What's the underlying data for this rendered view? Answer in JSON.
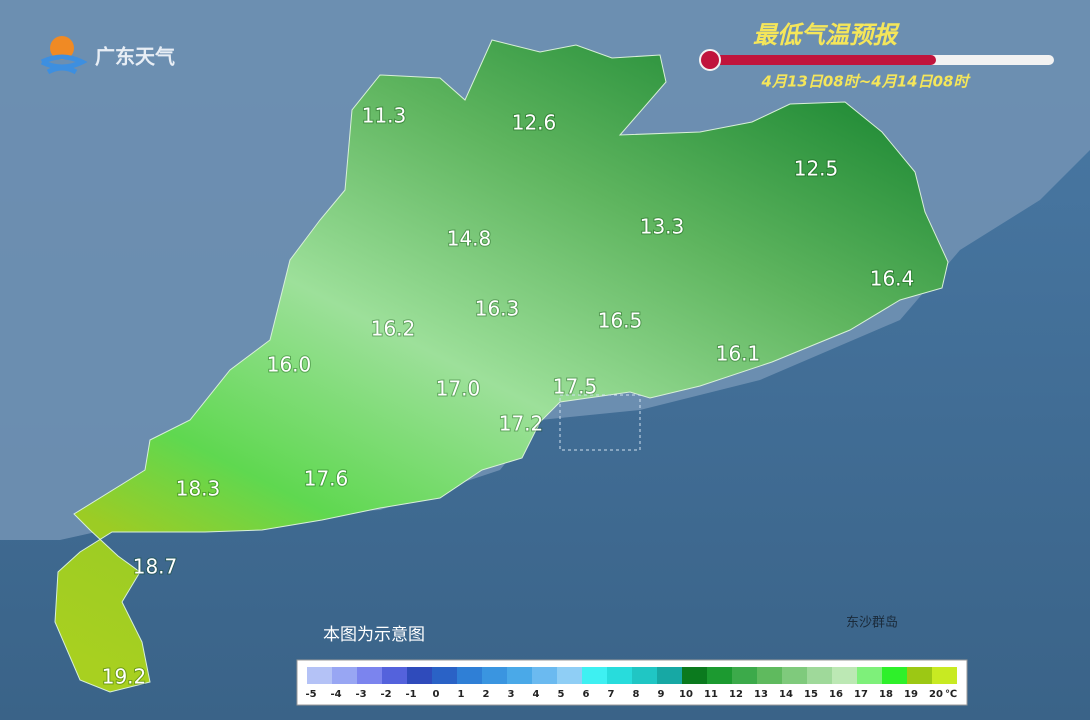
{
  "header": {
    "logo": "广东天气",
    "title": "最低气温预报",
    "subtitle": "4月13日08时~4月14日08时"
  },
  "labels": [
    "11.3",
    "12.6",
    "12.5",
    "14.8",
    "13.3",
    "16.4",
    "16.3",
    "16.5",
    "16.2",
    "16.0",
    "16.1",
    "17.0",
    "17.5",
    "17.2",
    "18.3",
    "17.6",
    "18.7",
    "19.2"
  ],
  "note": "本图为示意图",
  "island": "东沙群岛",
  "legend": {
    "unit": "℃",
    "ticks": [
      "-5",
      "-4",
      "-3",
      "-2",
      "-1",
      "0",
      "1",
      "2",
      "3",
      "4",
      "5",
      "6",
      "7",
      "8",
      "9",
      "10",
      "11",
      "12",
      "13",
      "14",
      "15",
      "16",
      "17",
      "18",
      "19",
      "20"
    ],
    "colors": [
      "#b4c2f6",
      "#98a6f3",
      "#7b84ee",
      "#5462dc",
      "#2f4bbb",
      "#2a62c6",
      "#2f7fd6",
      "#3a95e0",
      "#4aa9e8",
      "#6bbaf0",
      "#8fcef5",
      "#3ef0f2",
      "#28dcdc",
      "#20c6c4",
      "#17a8a4",
      "#0b7a1e",
      "#1c9a30",
      "#3caa4a",
      "#5fba5e",
      "#7fca7c",
      "#9fd99a",
      "#bce8b4",
      "#7ef07a",
      "#2ef02a",
      "#9cc814",
      "#c8ea22"
    ]
  }
}
